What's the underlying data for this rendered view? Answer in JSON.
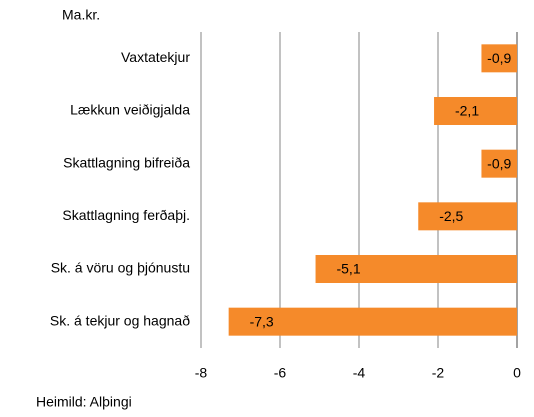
{
  "chart_data": {
    "type": "bar",
    "orientation": "horizontal",
    "unit_label": "Ma.kr.",
    "source": "Heimild: Alþingi",
    "categories": [
      "Vaxtatekjur",
      "Lækkun veiðigjalda",
      "Skattlagning bifreiða",
      "Skattlagning ferðaþj.",
      "Sk. á vöru og þjónustu",
      "Sk. á tekjur og hagnað"
    ],
    "values": [
      -0.9,
      -2.1,
      -0.9,
      -2.5,
      -5.1,
      -7.3
    ],
    "value_labels": [
      "-0,9",
      "-2,1",
      "-0,9",
      "-2,5",
      "-5,1",
      "-7,3"
    ],
    "color": "#f58a2a",
    "xlim": [
      -8,
      0
    ],
    "xticks": [
      -8,
      -6,
      -4,
      -2,
      0
    ],
    "grid": true
  }
}
